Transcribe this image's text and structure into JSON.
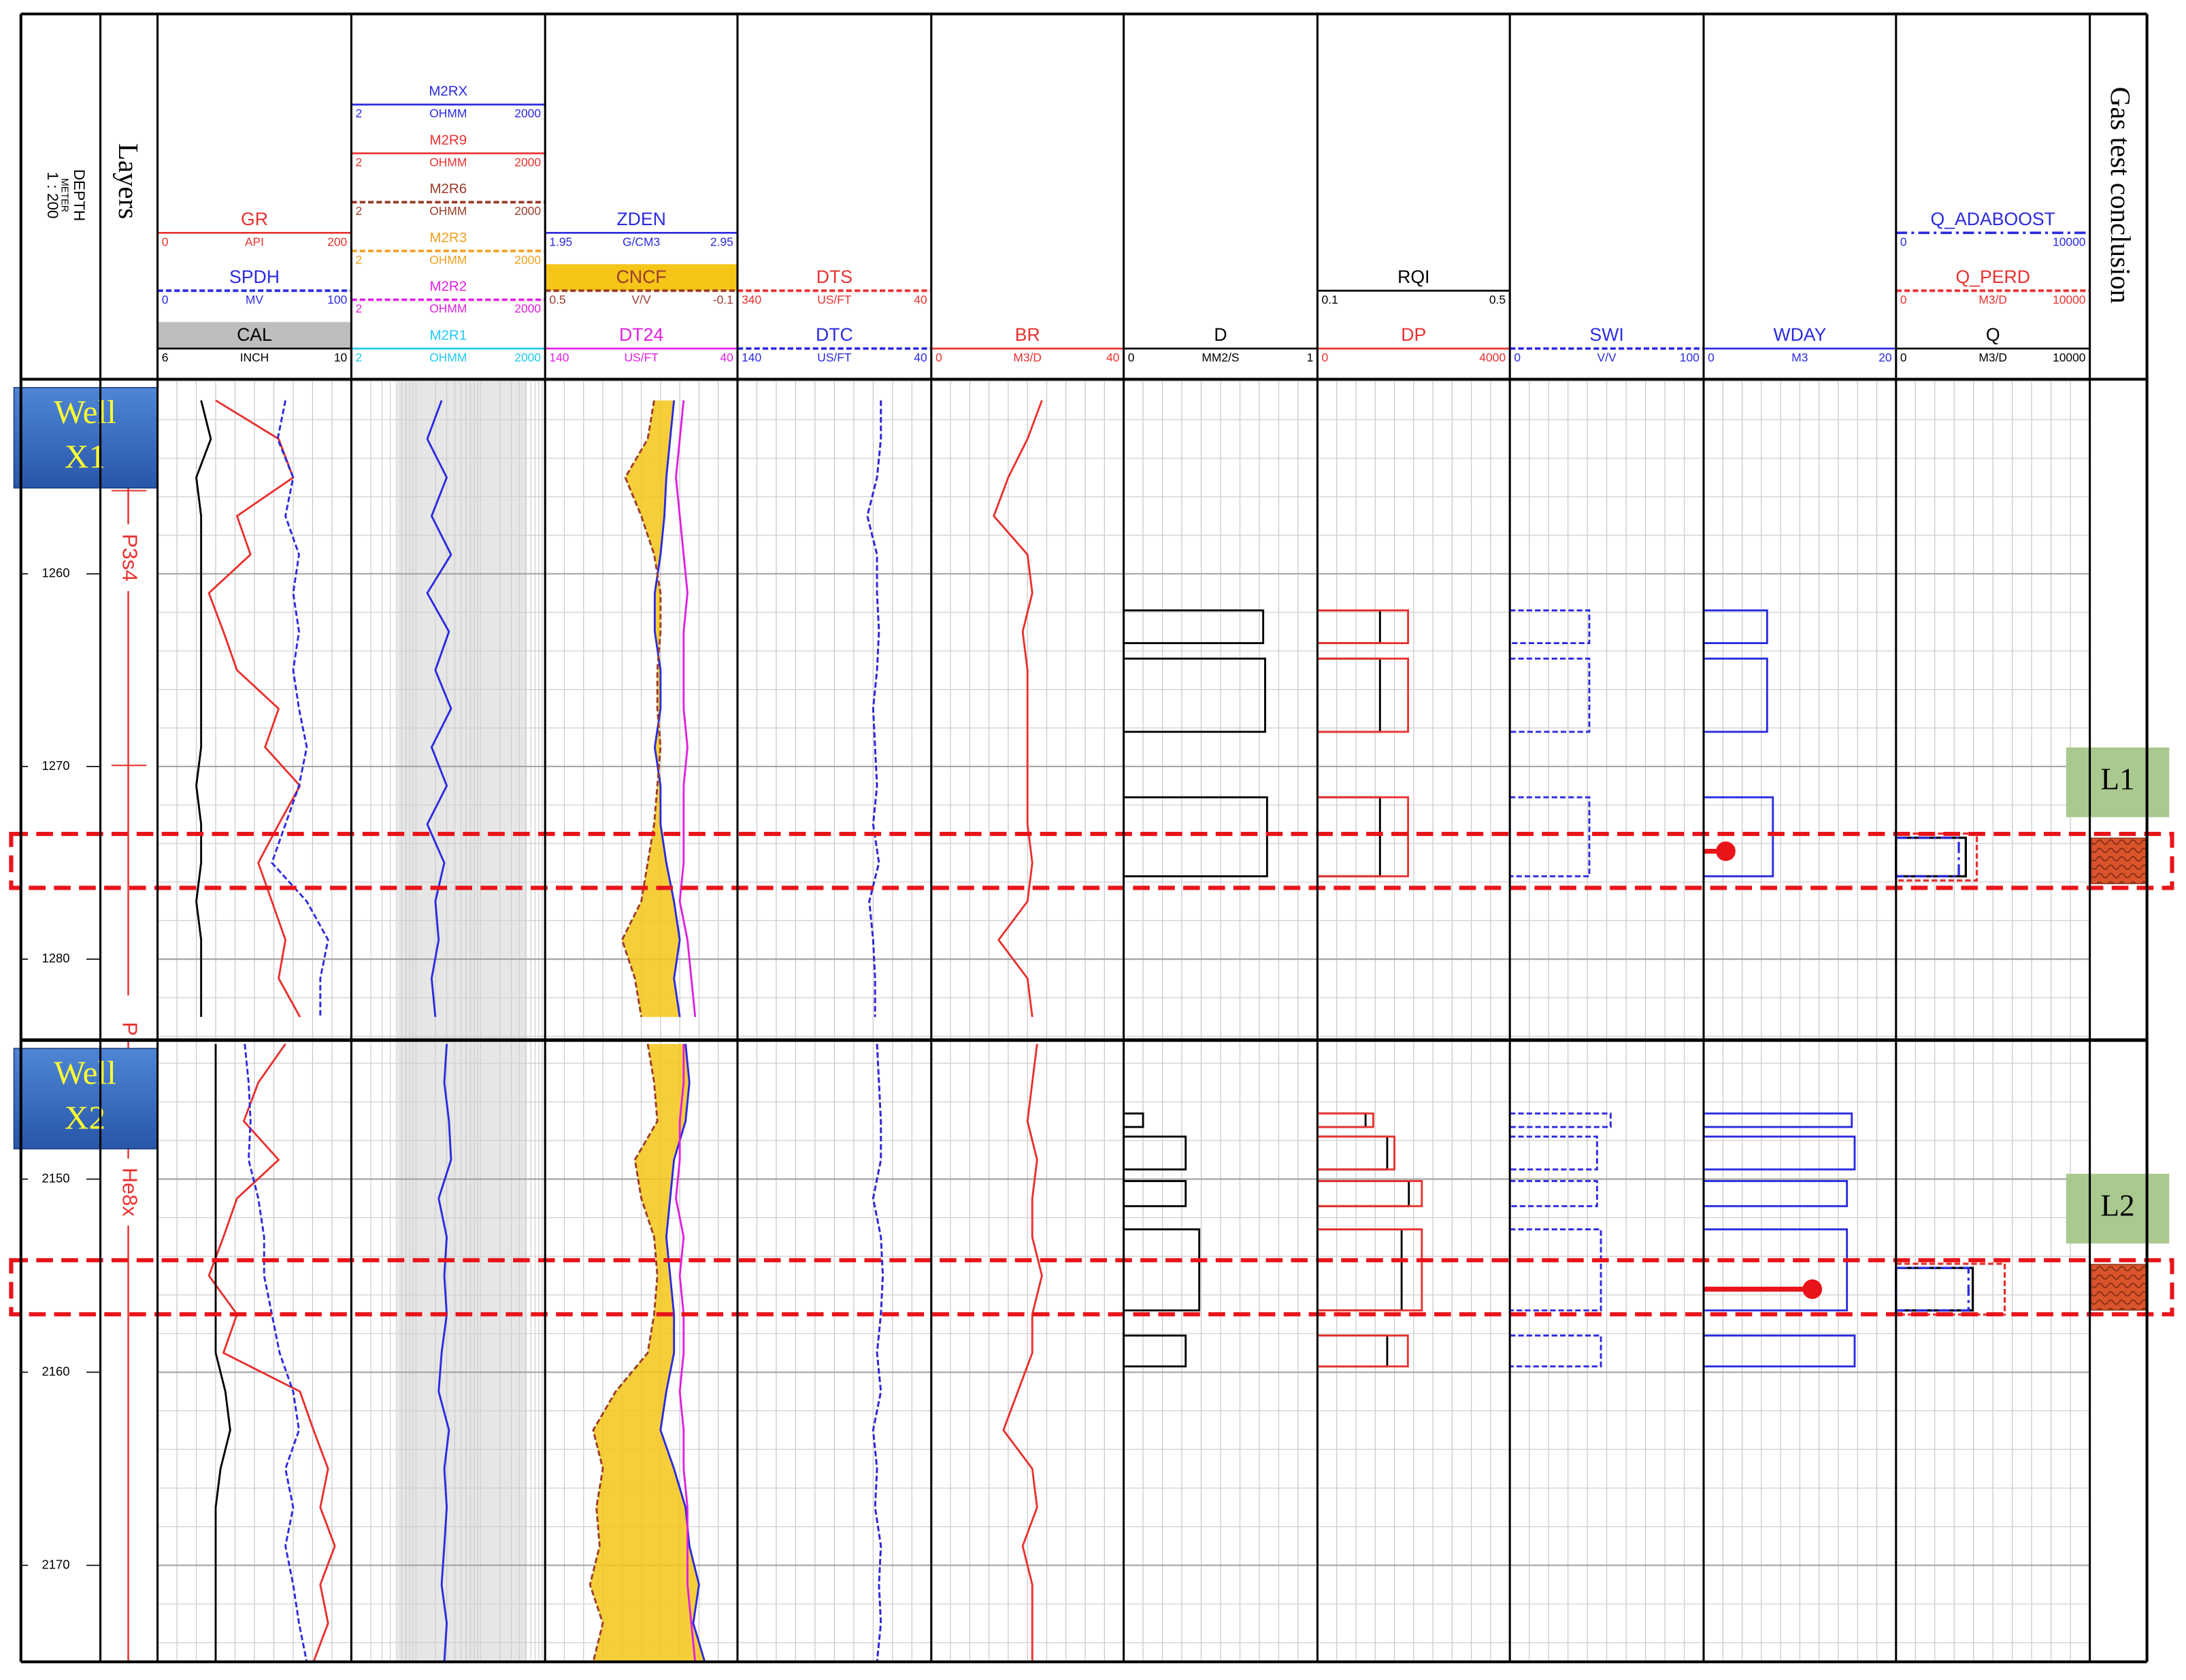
{
  "depth_header": {
    "name": "DEPTH",
    "unit": "METER",
    "scale": "1 : 200"
  },
  "layers_header": "Layers",
  "conclusion_header": "Gas test conclusion",
  "tracks": [
    {
      "curves": [
        {
          "name": "GR",
          "unit": "API",
          "left": 0,
          "right": 200,
          "color": "#e8312f",
          "dash": "solid"
        },
        {
          "name": "SPDH",
          "unit": "MV",
          "left": 0,
          "right": 100,
          "color": "#2a2ae0",
          "dash": "dashed"
        },
        {
          "name": "CAL",
          "unit": "INCH",
          "left": 6,
          "right": 10,
          "color": "#000000",
          "dash": "solid",
          "header_fill": "#bdbdbd"
        }
      ]
    },
    {
      "log_scale": true,
      "curves": [
        {
          "name": "M2RX",
          "unit": "OHMM",
          "left": 2,
          "right": 2000,
          "color": "#2a2ae0",
          "dash": "solid"
        },
        {
          "name": "M2R9",
          "unit": "OHMM",
          "left": 2,
          "right": 2000,
          "color": "#e8312f",
          "dash": "solid"
        },
        {
          "name": "M2R6",
          "unit": "OHMM",
          "left": 2,
          "right": 2000,
          "color": "#9b3b2a",
          "dash": "dashed"
        },
        {
          "name": "M2R3",
          "unit": "OHMM",
          "left": 2,
          "right": 2000,
          "color": "#f0a020",
          "dash": "dashed"
        },
        {
          "name": "M2R2",
          "unit": "OHMM",
          "left": 2,
          "right": 2000,
          "color": "#e020e0",
          "dash": "dashed"
        },
        {
          "name": "M2R1",
          "unit": "OHMM",
          "left": 2,
          "right": 2000,
          "color": "#20c8f0",
          "dash": "solid"
        }
      ]
    },
    {
      "curves": [
        {
          "name": "ZDEN",
          "unit": "G/CM3",
          "left": 1.95,
          "right": 2.95,
          "color": "#2a2ae0",
          "dash": "solid"
        },
        {
          "name": "CNCF",
          "unit": "V/V",
          "left": 0.5,
          "right": -0.1,
          "color": "#9b3b2a",
          "dash": "dashed",
          "header_fill": "#f5c518"
        },
        {
          "name": "DT24",
          "unit": "US/FT",
          "left": 140,
          "right": 40,
          "color": "#e020e0",
          "dash": "solid"
        }
      ]
    },
    {
      "curves": [
        {
          "name": "DTS",
          "unit": "US/FT",
          "left": 340,
          "right": 40,
          "color": "#e8312f",
          "dash": "dashed"
        },
        {
          "name": "DTC",
          "unit": "US/FT",
          "left": 140,
          "right": 40,
          "color": "#2a2ae0",
          "dash": "dashed"
        }
      ]
    },
    {
      "curves": [
        {
          "name": "BR",
          "unit": "M3/D",
          "left": 0,
          "right": 40,
          "color": "#e8312f",
          "dash": "solid"
        }
      ]
    },
    {
      "curves": [
        {
          "name": "D",
          "unit": "MM2/S",
          "left": 0,
          "right": 1,
          "color": "#000000",
          "dash": "solid"
        }
      ]
    },
    {
      "curves": [
        {
          "name": "RQI",
          "left": 0.1,
          "right": 0.5,
          "color": "#000000",
          "dash": "solid"
        },
        {
          "name": "DP",
          "left": 0,
          "right": 4000,
          "color": "#e8312f",
          "dash": "solid"
        }
      ]
    },
    {
      "curves": [
        {
          "name": "SWI",
          "unit": "V/V",
          "left": 0,
          "right": 100,
          "color": "#2a2ae0",
          "dash": "dashed"
        }
      ]
    },
    {
      "curves": [
        {
          "name": "WDAY",
          "unit": "M3",
          "left": 0,
          "right": 20,
          "color": "#2a2ae0",
          "dash": "solid"
        }
      ]
    },
    {
      "curves": [
        {
          "name": "Q_ADABOOST",
          "left": 0,
          "right": 10000,
          "color": "#2a2ae0",
          "dash": "dashdot"
        },
        {
          "name": "Q_PERD",
          "unit": "M3/D",
          "left": 0,
          "right": 10000,
          "color": "#e8312f",
          "dash": "dashed"
        },
        {
          "name": "Q",
          "unit": "M3/D",
          "left": 0,
          "right": 10000,
          "color": "#000000",
          "dash": "solid"
        }
      ]
    }
  ],
  "wells": [
    {
      "label_lines": [
        "Well",
        "X1"
      ],
      "layers": [
        "P3s4",
        "P"
      ],
      "test_label": "L1",
      "ylim": [
        1249.9,
        1284.2
      ],
      "depth_ticks": [
        1260,
        1270,
        1280
      ],
      "test_interval": [
        1273.5,
        1276.3
      ],
      "logs": {
        "depths": [
          1251,
          1253,
          1255,
          1257,
          1259,
          1261,
          1263,
          1265,
          1267,
          1269,
          1271,
          1273,
          1275,
          1277,
          1279,
          1281,
          1283
        ],
        "GR": [
          60,
          125,
          140,
          82,
          96,
          53,
          68,
          82,
          125,
          111,
          147,
          125,
          104,
          118,
          132,
          125,
          147
        ],
        "SPDH": [
          66,
          62,
          70,
          66,
          73,
          70,
          73,
          70,
          73,
          77,
          73,
          66,
          59,
          77,
          88,
          84,
          84
        ],
        "CAL": [
          6.9,
          7.1,
          6.8,
          6.9,
          6.9,
          6.9,
          6.9,
          6.9,
          6.9,
          6.9,
          6.8,
          6.9,
          6.9,
          6.8,
          6.9,
          6.9,
          6.9
        ],
        "M2RX": [
          50,
          30,
          60,
          35,
          70,
          30,
          65,
          40,
          70,
          35,
          60,
          30,
          55,
          40,
          45,
          35,
          40
        ],
        "ZDEN": [
          2.62,
          2.6,
          2.58,
          2.57,
          2.55,
          2.52,
          2.52,
          2.55,
          2.55,
          2.52,
          2.55,
          2.55,
          2.58,
          2.62,
          2.65,
          2.62,
          2.65
        ],
        "CNCF": [
          0.16,
          0.18,
          0.25,
          0.2,
          0.16,
          0.14,
          0.14,
          0.15,
          0.15,
          0.14,
          0.15,
          0.16,
          0.18,
          0.2,
          0.26,
          0.22,
          0.2
        ],
        "DT24": [
          68,
          70,
          72,
          70,
          68,
          66,
          68,
          68,
          68,
          66,
          68,
          68,
          68,
          70,
          66,
          64,
          62
        ],
        "DTS": [
          118,
          118,
          124,
          139,
          124,
          124,
          121,
          124,
          130,
          127,
          124,
          130,
          121,
          136,
          130,
          127,
          127
        ],
        "DTC": [
          66,
          66,
          68,
          73,
          68,
          68,
          67,
          68,
          70,
          69,
          68,
          70,
          67,
          72,
          70,
          69,
          69
        ],
        "BR": [
          23,
          20,
          16,
          13,
          20,
          21,
          19,
          20,
          20,
          20,
          20,
          20,
          21,
          20,
          14,
          20,
          21
        ]
      },
      "blocks": [
        {
          "top": 1261.9,
          "bottom": 1263.6,
          "D": 0.72,
          "RQI": 0.23,
          "DP": 1884,
          "SWI": 41,
          "WDAY": 6.6
        },
        {
          "top": 1264.4,
          "bottom": 1268.2,
          "D": 0.73,
          "RQI": 0.23,
          "DP": 1884,
          "SWI": 41,
          "WDAY": 6.6
        },
        {
          "top": 1271.6,
          "bottom": 1275.7,
          "D": 0.74,
          "RQI": 0.23,
          "DP": 1884,
          "SWI": 41,
          "WDAY": 7.2
        }
      ],
      "wday_point": {
        "depth": 1274.4,
        "value": 2.3
      },
      "q_box": {
        "top": 1273.7,
        "bottom": 1275.7,
        "Q": 3600,
        "Q_PERD": 4170,
        "Q_ADABOOST": 3240
      }
    },
    {
      "label_lines": [
        "Well",
        "X2"
      ],
      "layers": [
        "He8x"
      ],
      "test_label": "L2",
      "ylim": [
        2142.8,
        2175.0
      ],
      "depth_ticks": [
        2150,
        2160,
        2170
      ],
      "test_interval": [
        2154.2,
        2157.0
      ],
      "logs": {
        "depths": [
          2143,
          2145,
          2147,
          2149,
          2151,
          2153,
          2155,
          2157,
          2159,
          2161,
          2163,
          2165,
          2167,
          2169,
          2171,
          2173,
          2175
        ],
        "GR": [
          132,
          104,
          89,
          125,
          82,
          68,
          53,
          82,
          68,
          147,
          161,
          176,
          168,
          183,
          168,
          176,
          161
        ],
        "SPDH": [
          45,
          47,
          48,
          47,
          52,
          55,
          55,
          59,
          63,
          70,
          73,
          66,
          70,
          66,
          70,
          73,
          77
        ],
        "CAL": [
          7.2,
          7.2,
          7.2,
          7.2,
          7.2,
          7.2,
          7.2,
          7.2,
          7.2,
          7.4,
          7.5,
          7.3,
          7.2,
          7.2,
          7.2,
          7.2,
          7.2
        ],
        "M2RX": [
          60,
          55,
          65,
          70,
          45,
          60,
          55,
          60,
          50,
          45,
          65,
          55,
          60,
          55,
          50,
          60,
          55
        ],
        "ZDEN": [
          2.68,
          2.7,
          2.68,
          2.62,
          2.6,
          2.58,
          2.6,
          2.62,
          2.62,
          2.58,
          2.55,
          2.62,
          2.68,
          2.7,
          2.75,
          2.72,
          2.78
        ],
        "CNCF": [
          0.18,
          0.16,
          0.15,
          0.22,
          0.2,
          0.16,
          0.15,
          0.16,
          0.18,
          0.28,
          0.35,
          0.32,
          0.34,
          0.33,
          0.36,
          0.32,
          0.35
        ],
        "DT24": [
          68,
          68,
          70,
          70,
          72,
          68,
          70,
          68,
          68,
          70,
          68,
          68,
          66,
          66,
          66,
          64,
          62
        ],
        "DTS": [
          124,
          121,
          118,
          118,
          130,
          118,
          115,
          118,
          124,
          118,
          130,
          124,
          127,
          118,
          121,
          118,
          124
        ],
        "DTC": [
          68,
          67,
          66,
          66,
          70,
          66,
          65,
          66,
          68,
          66,
          70,
          68,
          69,
          66,
          67,
          66,
          68
        ],
        "BR": [
          22,
          21,
          20,
          22,
          21,
          21,
          23,
          21,
          21,
          18,
          15,
          21,
          22,
          19,
          21,
          21,
          21
        ]
      },
      "blocks": [
        {
          "top": 2146.6,
          "bottom": 2147.3,
          "D": 0.1,
          "RQI": 0.2,
          "DP": 1160,
          "SWI": 52,
          "WDAY": 15.4
        },
        {
          "top": 2147.8,
          "bottom": 2149.5,
          "D": 0.32,
          "RQI": 0.245,
          "DP": 1600,
          "SWI": 45,
          "WDAY": 15.7
        },
        {
          "top": 2150.1,
          "bottom": 2151.4,
          "D": 0.32,
          "RQI": 0.29,
          "DP": 2170,
          "SWI": 45,
          "WDAY": 14.9
        },
        {
          "top": 2152.6,
          "bottom": 2156.8,
          "D": 0.39,
          "RQI": 0.275,
          "DP": 2170,
          "SWI": 47,
          "WDAY": 14.9
        },
        {
          "top": 2158.1,
          "bottom": 2159.7,
          "D": 0.32,
          "RQI": 0.245,
          "DP": 1880,
          "SWI": 47,
          "WDAY": 15.7
        }
      ],
      "wday_point": {
        "depth": 2155.7,
        "value": 11.3
      },
      "q_box": {
        "top": 2154.6,
        "bottom": 2156.8,
        "Q": 3960,
        "Q_PERD": 5610,
        "Q_ADABOOST": 3740
      }
    }
  ]
}
